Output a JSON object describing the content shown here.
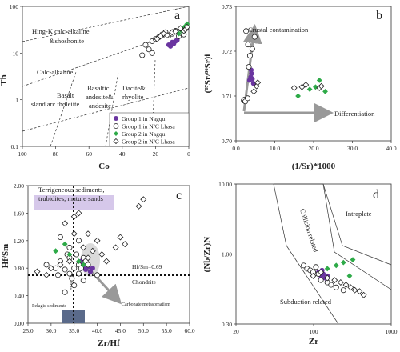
{
  "chart_data": [
    {
      "id": "a",
      "type": "scatter",
      "panel_label": "a",
      "xlabel": "Co",
      "ylabel": "Th",
      "x_reversed": true,
      "y_scale": "log",
      "xlim": [
        100,
        0
      ],
      "ylim": [
        0.1,
        100
      ],
      "x_ticks": [
        "100",
        "80",
        "60",
        "40",
        "20",
        "0"
      ],
      "y_ticks": [
        "0.1",
        "1",
        "10",
        "100"
      ],
      "field_labels": [
        "Hing-K calc-alkaline",
        "&shoshonite",
        "Calc-alkaline",
        "Island arc tholeiite",
        "Basalt",
        "Basaltic",
        "andesite&",
        "andesite",
        "Dacite&",
        "rhyolite"
      ],
      "legend": [
        "Group 1 in Nagqu",
        "Group 1 in N/C Lhasa",
        "Group 2 in Nagqu",
        "Group 2 in N/C Lhasa"
      ],
      "series": [
        {
          "name": "Group 1 in Nagqu",
          "marker": "circle-filled",
          "color": "#6a35a0",
          "x": [
            12,
            11,
            10,
            9,
            8,
            7
          ],
          "y": [
            15,
            14,
            17,
            16,
            18,
            19
          ]
        },
        {
          "name": "Group 1 in N/C Lhasa",
          "marker": "circle-open",
          "color": "#222",
          "x": [
            28,
            26,
            24,
            22,
            20,
            18,
            16,
            14,
            12,
            10,
            8,
            6,
            5,
            4,
            3,
            22
          ],
          "y": [
            9,
            15,
            12,
            18,
            20,
            22,
            25,
            28,
            24,
            26,
            30,
            23,
            27,
            31,
            25,
            10
          ]
        },
        {
          "name": "Group 2 in Nagqu",
          "marker": "diamond-filled",
          "color": "#2eaa48",
          "x": [
            6,
            4,
            3,
            2,
            1
          ],
          "y": [
            26,
            30,
            35,
            38,
            42
          ]
        },
        {
          "name": "Group 2 in N/C Lhasa",
          "marker": "diamond-open",
          "color": "#222",
          "x": [
            19,
            17,
            15,
            13,
            10,
            8,
            5,
            3,
            2,
            1
          ],
          "y": [
            20,
            23,
            26,
            24,
            28,
            29,
            34,
            30,
            32,
            36
          ]
        }
      ]
    },
    {
      "id": "b",
      "type": "scatter",
      "panel_label": "b",
      "xlabel": "(1/Sr)*1000",
      "ylabel": "(⁸⁷Sr/⁸⁶Sr)i",
      "xlim": [
        0,
        40
      ],
      "ylim": [
        0.7,
        0.73
      ],
      "x_ticks": [
        "0.0",
        "10.0",
        "20.0",
        "30.0",
        "40.0"
      ],
      "y_ticks": [
        "0.70",
        "0.71",
        "0.72",
        "0.73"
      ],
      "annotations": [
        "Crustal contamination",
        "Differentiation"
      ],
      "series": [
        {
          "name": "Group 1 in Nagqu",
          "marker": "circle-filled",
          "color": "#6a35a0",
          "x": [
            3.5,
            3.8,
            4.0,
            4.2,
            4.5,
            3.9
          ],
          "y": [
            0.7135,
            0.7142,
            0.715,
            0.7138,
            0.7128,
            0.7158
          ]
        },
        {
          "name": "Group 1 in N/C Lhasa",
          "marker": "circle-open",
          "color": "#222",
          "x": [
            2.0,
            2.2,
            2.4,
            3.0,
            3.3,
            3.6,
            4.2,
            4.8,
            2.6,
            3.1
          ],
          "y": [
            0.709,
            0.7092,
            0.7088,
            0.7095,
            0.7165,
            0.719,
            0.7205,
            0.7232,
            0.7245,
            0.7215
          ]
        },
        {
          "name": "Group 2 in Nagqu",
          "marker": "diamond-filled",
          "color": "#2eaa48",
          "x": [
            16,
            19,
            20.5,
            21.5,
            23
          ],
          "y": [
            0.71,
            0.7115,
            0.712,
            0.7135,
            0.711
          ]
        },
        {
          "name": "Group 2 in N/C Lhasa",
          "marker": "diamond-open",
          "color": "#222",
          "x": [
            4.6,
            5.3,
            5.6,
            15,
            17,
            18,
            21.5,
            22
          ],
          "y": [
            0.711,
            0.7122,
            0.713,
            0.7118,
            0.712,
            0.7125,
            0.7118,
            0.7122
          ]
        }
      ]
    },
    {
      "id": "c",
      "type": "scatter",
      "panel_label": "c",
      "xlabel": "Zr/Hf",
      "ylabel": "Hf/Sm",
      "xlim": [
        25,
        60
      ],
      "ylim": [
        0,
        2
      ],
      "x_ticks": [
        "25.0",
        "30.0",
        "35.0",
        "40.0",
        "45.0",
        "50.0",
        "55.0",
        "60.0"
      ],
      "y_ticks": [
        "0.00",
        "0.40",
        "0.80",
        "1.20",
        "1.60",
        "2.00"
      ],
      "annotations": [
        "Terrigeneous sediments,",
        "trubidites, mature sands",
        "Hf/Sm=0.69",
        "Chondrite",
        "Pelagic sediments",
        "Carbonate metasomatism",
        "Chondrite"
      ],
      "series": [
        {
          "name": "Group 1 in Nagqu",
          "marker": "circle-filled",
          "color": "#6a35a0",
          "x": [
            36,
            36.5,
            37,
            37.5,
            38,
            38.5,
            39
          ],
          "y": [
            0.85,
            0.9,
            0.8,
            0.78,
            0.82,
            0.75,
            0.8
          ]
        },
        {
          "name": "Group 1 in N/C Lhasa",
          "marker": "circle-open",
          "color": "#222",
          "x": [
            29,
            31,
            32,
            33,
            33.5,
            34,
            34.5,
            35,
            35.5,
            36,
            36.5,
            37,
            37.5,
            38,
            40,
            32,
            34,
            35,
            37,
            36,
            33,
            31.5,
            34,
            36
          ],
          "y": [
            0.85,
            0.8,
            0.9,
            0.78,
            1.0,
            0.95,
            0.65,
            0.8,
            1.0,
            0.85,
            0.8,
            0.95,
            0.9,
            0.85,
            0.7,
            1.25,
            1.1,
            0.55,
            0.62,
            1.2,
            0.45,
            0.7,
            0.72,
            0.72
          ]
        },
        {
          "name": "Group 2 in Nagqu",
          "marker": "diamond-filled",
          "color": "#2eaa48",
          "x": [
            31,
            33,
            34,
            36,
            37
          ],
          "y": [
            1.05,
            1.15,
            1.0,
            0.9,
            0.85
          ]
        },
        {
          "name": "Group 2 in N/C Lhasa",
          "marker": "diamond-open",
          "color": "#222",
          "x": [
            27,
            29,
            30,
            32,
            34,
            35,
            36,
            37,
            38,
            39,
            40,
            41,
            42,
            44,
            45,
            46,
            49,
            50,
            35,
            33,
            38
          ],
          "y": [
            0.75,
            0.7,
            0.8,
            0.85,
            0.9,
            1.3,
            1.6,
            1.1,
            0.95,
            1.05,
            1.2,
            1.0,
            0.9,
            1.1,
            1.25,
            1.15,
            1.7,
            1.8,
            1.55,
            1.45,
            1.3
          ]
        }
      ]
    },
    {
      "id": "d",
      "type": "scatter",
      "panel_label": "d",
      "xlabel": "Zr",
      "ylabel": "(Nb/Zr)N",
      "x_scale": "log",
      "y_scale": "log",
      "xlim": [
        20,
        1000
      ],
      "ylim": [
        0.3,
        10
      ],
      "x_ticks": [
        "20",
        "100",
        "1000"
      ],
      "y_ticks": [
        "0.30",
        "1.00",
        "10.00"
      ],
      "field_labels": [
        "Intraplate",
        "Collision related",
        "Subduction related"
      ],
      "series": [
        {
          "name": "Group 1 in Nagqu",
          "marker": "circle-filled",
          "color": "#6a35a0",
          "x": [
            160,
            170,
            180,
            190,
            200,
            175
          ],
          "y": [
            1.1,
            1.0,
            1.05,
            0.95,
            1.0,
            1.15
          ]
        },
        {
          "name": "Group 1 in N/C Lhasa",
          "marker": "circle-open",
          "color": "#222",
          "x": [
            110,
            120,
            130,
            140,
            150,
            160,
            170,
            200,
            220,
            250,
            300
          ],
          "y": [
            1.3,
            1.2,
            1.15,
            1.1,
            1.25,
            1.05,
            0.9,
            0.85,
            0.8,
            0.75,
            0.7
          ]
        },
        {
          "name": "Group 2 in Nagqu",
          "marker": "diamond-filled",
          "color": "#2eaa48",
          "x": [
            200,
            250,
            300,
            350,
            380
          ],
          "y": [
            1.2,
            1.3,
            1.4,
            1.0,
            1.5
          ]
        },
        {
          "name": "Group 2 in N/C Lhasa",
          "marker": "diamond-open",
          "color": "#222",
          "x": [
            140,
            170,
            200,
            240,
            280,
            320,
            360,
            400,
            450,
            500
          ],
          "y": [
            1.0,
            1.1,
            0.95,
            0.9,
            0.85,
            0.8,
            0.75,
            0.7,
            0.68,
            0.62
          ]
        }
      ]
    }
  ]
}
